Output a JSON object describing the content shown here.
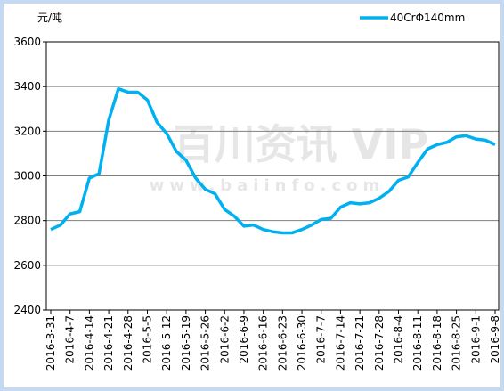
{
  "chart_data": {
    "type": "line",
    "y_label": "元/吨",
    "watermark": "百川资讯 VIP",
    "watermark_url": "www.baiinfo.com",
    "categories": [
      "2016-3-31",
      null,
      "2016-4-7",
      null,
      "2016-4-14",
      null,
      "2016-4-21",
      null,
      "2016-4-28",
      null,
      "2016-5-5",
      null,
      "2016-5-12",
      null,
      "2016-5-19",
      null,
      "2016-5-26",
      null,
      "2016-6-2",
      null,
      "2016-6-9",
      null,
      "2016-6-16",
      null,
      "2016-6-23",
      null,
      "2016-6-30",
      null,
      "2016-7-7",
      null,
      "2016-7-14",
      null,
      "2016-7-21",
      null,
      "2016-7-28",
      null,
      "2016-8-4",
      null,
      "2016-8-11",
      null,
      "2016-8-18",
      null,
      "2016-8-25",
      null,
      "2016-9-1",
      null,
      "2016-9-8"
    ],
    "series": [
      {
        "name": "40CrΦ140mm",
        "color": "#00b0f0",
        "values": [
          2760,
          2780,
          2830,
          2840,
          2990,
          3010,
          3250,
          3390,
          3375,
          3375,
          3340,
          3240,
          3190,
          3110,
          3070,
          2990,
          2940,
          2920,
          2850,
          2820,
          2775,
          2780,
          2760,
          2750,
          2745,
          2745,
          2760,
          2780,
          2805,
          2810,
          2860,
          2880,
          2875,
          2880,
          2900,
          2930,
          2980,
          2995,
          3060,
          3120,
          3140,
          3150,
          3175,
          3180,
          3165,
          3160,
          3140
        ]
      }
    ],
    "ylim": [
      2400,
      3600
    ],
    "yticks": [
      2400,
      2600,
      2800,
      3000,
      3200,
      3400,
      3600
    ],
    "grid": true,
    "legend": "top-right"
  }
}
